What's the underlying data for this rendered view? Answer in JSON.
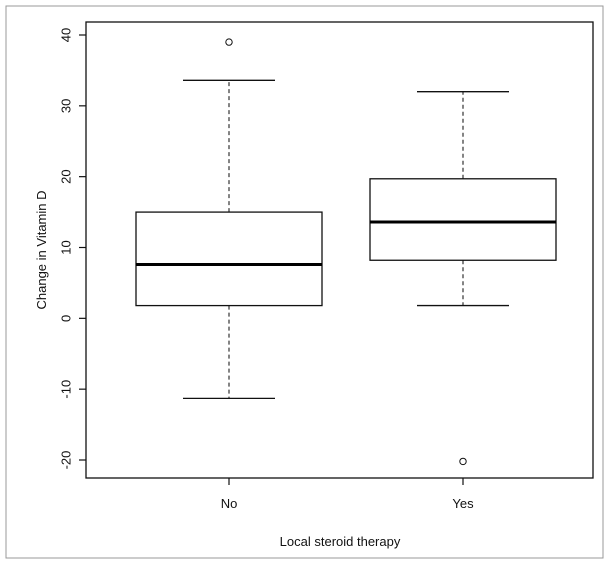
{
  "chart_data": {
    "type": "boxplot",
    "title": "",
    "xlabel": "Local steroid therapy",
    "ylabel": "Change in Vitamin D",
    "ylim": [
      -22,
      41
    ],
    "yticks": [
      -20,
      -10,
      0,
      10,
      20,
      30,
      40
    ],
    "ytick_labels": [
      "-20",
      "-10",
      "0",
      "10",
      "20",
      "30",
      "40"
    ],
    "categories": [
      "No",
      "Yes"
    ],
    "boxes": [
      {
        "name": "No",
        "whisker_low": -11.3,
        "q1": 1.8,
        "median": 7.6,
        "q3": 15.0,
        "whisker_high": 33.6,
        "outliers": [
          39.0
        ]
      },
      {
        "name": "Yes",
        "whisker_low": 1.8,
        "q1": 8.2,
        "median": 13.6,
        "q3": 19.7,
        "whisker_high": 32.0,
        "outliers": [
          -20.2
        ]
      }
    ],
    "grid": false,
    "legend": "none"
  }
}
